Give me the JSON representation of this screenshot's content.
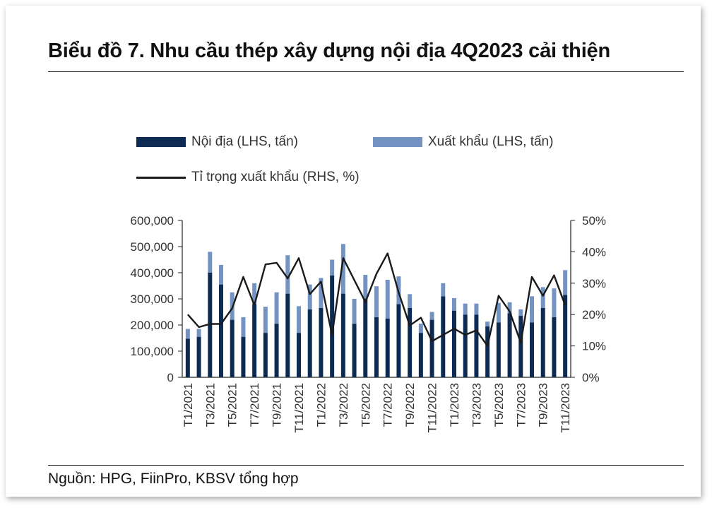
{
  "title": "Biểu đồ 7. Nhu cầu thép xây dựng nội địa 4Q2023 cải thiện",
  "source": "Nguồn: HPG, FiinPro, KBSV tổng hợp",
  "colors": {
    "domestic": "#0d2a52",
    "export": "#7393c2",
    "ratio": "#1a1a1a"
  },
  "chart_data": {
    "type": "bar",
    "stacked": true,
    "categories": [
      "T1/2021",
      "T2/2021",
      "T3/2021",
      "T4/2021",
      "T5/2021",
      "T6/2021",
      "T7/2021",
      "T8/2021",
      "T9/2021",
      "T10/2021",
      "T11/2021",
      "T12/2021",
      "T1/2022",
      "T2/2022",
      "T3/2022",
      "T4/2022",
      "T5/2022",
      "T6/2022",
      "T7/2022",
      "T8/2022",
      "T9/2022",
      "T10/2022",
      "T11/2022",
      "T12/2022",
      "T1/2023",
      "T2/2023",
      "T3/2023",
      "T4/2023",
      "T5/2023",
      "T6/2023",
      "T7/2023",
      "T8/2023",
      "T9/2023",
      "T10/2023",
      "T11/2023"
    ],
    "tick_labels": [
      "T1/2021",
      "T3/2021",
      "T5/2021",
      "T7/2021",
      "T9/2021",
      "T11/2021",
      "T1/2022",
      "T3/2022",
      "T5/2022",
      "T7/2022",
      "T9/2022",
      "T11/2022",
      "T1/2023",
      "T3/2023",
      "T5/2023",
      "T7/2023",
      "T9/2023",
      "T11/2023"
    ],
    "series": [
      {
        "name": "Nội địa (LHS, tấn)",
        "axis": "left",
        "values": [
          148000,
          155000,
          400000,
          355000,
          220000,
          155000,
          280000,
          170000,
          205000,
          320000,
          170000,
          260000,
          265000,
          390000,
          320000,
          205000,
          300000,
          230000,
          225000,
          280000,
          265000,
          170000,
          220000,
          310000,
          255000,
          240000,
          240000,
          195000,
          210000,
          245000,
          235000,
          210000,
          265000,
          230000,
          315000
        ]
      },
      {
        "name": "Xuất khẩu (LHS, tấn)",
        "axis": "left",
        "values": [
          37000,
          30000,
          80000,
          75000,
          105000,
          75000,
          80000,
          100000,
          120000,
          147000,
          102000,
          95000,
          115000,
          60000,
          190000,
          95000,
          92000,
          118000,
          148000,
          106000,
          53000,
          35000,
          30000,
          50000,
          48000,
          42000,
          42000,
          18000,
          75000,
          42000,
          25000,
          100000,
          80000,
          110000,
          95000
        ]
      },
      {
        "name": "Tỉ trọng xuất khẩu (RHS, %)",
        "axis": "right",
        "type": "line",
        "values": [
          20,
          16,
          17,
          17,
          22,
          32,
          23,
          36,
          36.5,
          31.5,
          38,
          26.5,
          30.5,
          13.5,
          38,
          31,
          24,
          33,
          39.5,
          27,
          16.5,
          19,
          11.5,
          13.5,
          15.5,
          13.5,
          15,
          10,
          26,
          21,
          11,
          32,
          26,
          32.5,
          23
        ]
      }
    ],
    "left_ticks": [
      "0",
      "100,000",
      "200,000",
      "300,000",
      "400,000",
      "500,000",
      "600,000"
    ],
    "right_ticks": [
      "0%",
      "10%",
      "20%",
      "30%",
      "40%",
      "50%"
    ],
    "ylim_left": [
      0,
      600000
    ],
    "ylim_right": [
      0,
      50
    ],
    "legend": [
      {
        "label": "Nội địa (LHS, tấn)",
        "kind": "bar",
        "color": "#0d2a52"
      },
      {
        "label": "Xuất khẩu (LHS, tấn)",
        "kind": "bar",
        "color": "#7393c2"
      },
      {
        "label": "Tỉ trọng xuất khẩu (RHS, %)",
        "kind": "line",
        "color": "#1a1a1a"
      }
    ],
    "legend_position": "top",
    "grid": false
  }
}
